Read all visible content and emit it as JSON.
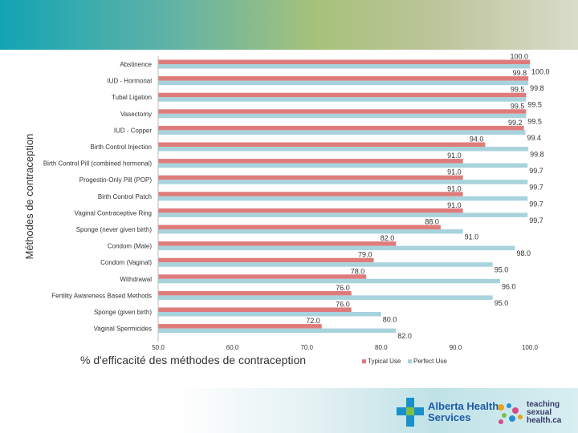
{
  "chart_data": {
    "type": "bar",
    "orientation": "horizontal",
    "title": "",
    "xlabel": "% d'efficacité des méthodes de contraception",
    "ylabel": "Méthodes de contraception",
    "xlim": [
      50,
      100
    ],
    "xticks": [
      "50.0",
      "60.0",
      "70.0",
      "80.0",
      "90.0",
      "100.0"
    ],
    "categories": [
      "Abstinence",
      "IUD - Hormonal",
      "Tubal Ligation",
      "Vasectomy",
      "IUD - Copper",
      "Birth Control Injection",
      "Birth Control Pill (combined hormonal)",
      "Progestin-Only Pill (POP)",
      "Birth Control Patch",
      "Vaginal Contraceptive Ring",
      "Sponge (never given birth)",
      "Condom (Male)",
      "Condom (Vaginal)",
      "Withdrawal",
      "Fertility Awareness Based Methods",
      "Sponge (given birth)",
      "Vaginal Spermicides"
    ],
    "series": [
      {
        "name": "Typical Use",
        "color": "#e07b7b",
        "values": [
          100.0,
          99.8,
          99.5,
          99.5,
          99.2,
          94.0,
          91.0,
          91.0,
          91.0,
          91.0,
          88.0,
          82.0,
          79.0,
          78.0,
          76.0,
          76.0,
          72.0
        ],
        "labels": [
          "100.0",
          "99.8",
          "99.5",
          "99.5",
          "99.2",
          "94.0",
          "91.0",
          "91.0",
          "91.0",
          "91.0",
          "88.0",
          "82.0",
          "79.0",
          "78.0",
          "76.0",
          "76.0",
          "72.0"
        ]
      },
      {
        "name": "Perfect Use",
        "color": "#a8d3dd",
        "values": [
          100.0,
          99.8,
          99.5,
          99.5,
          99.4,
          99.8,
          99.7,
          99.7,
          99.7,
          99.7,
          91.0,
          98.0,
          95.0,
          96.0,
          95.0,
          80.0,
          82.0
        ],
        "labels": [
          "100.0",
          "99.8",
          "99.5",
          "99.5",
          "99.4",
          "99.8",
          "99.7",
          "99.7",
          "99.7",
          "99.7",
          "91.0",
          "98.0",
          "95.0",
          "96.0",
          "95.0",
          "80.0",
          "82.0"
        ]
      }
    ],
    "legend": "bottom-center"
  },
  "footer": {
    "ahs_logo_line1": "Alberta Health",
    "ahs_logo_line2": "Services",
    "tsh_logo_line1": "teaching",
    "tsh_logo_line2": "sexual",
    "tsh_logo_line3": "health.ca"
  }
}
